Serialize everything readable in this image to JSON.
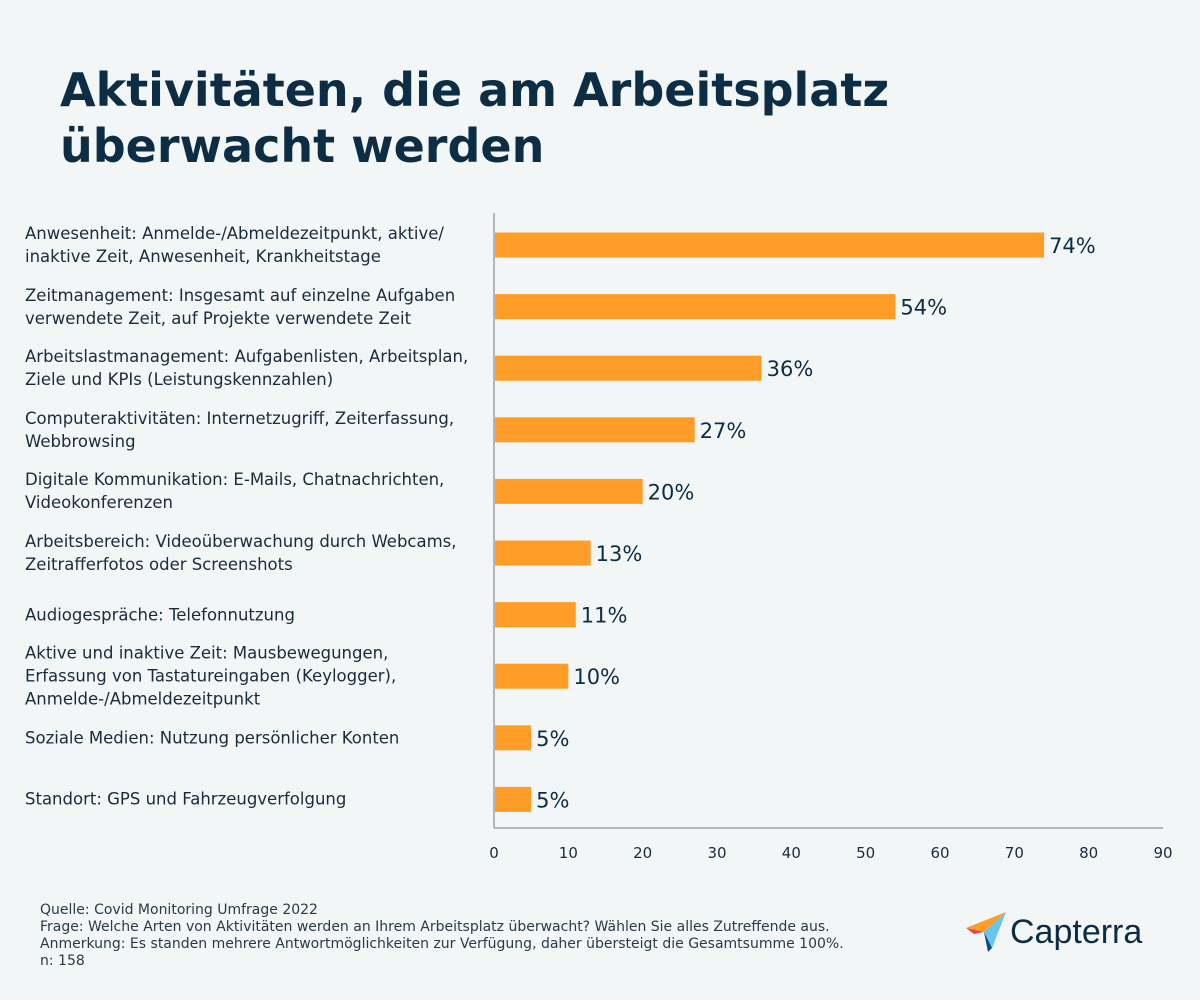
{
  "title": "Aktivitäten, die am Arbeitsplatz überwacht werden",
  "chart_data": {
    "type": "bar",
    "orientation": "horizontal",
    "categories": [
      [
        "Anwesenheit: Anmelde-/Abmeldezeitpunkt, aktive/",
        "inaktive Zeit, Anwesenheit, Krankheitstage"
      ],
      [
        "Zeitmanagement: Insgesamt auf einzelne Aufgaben",
        "verwendete Zeit, auf Projekte verwendete Zeit"
      ],
      [
        "Arbeitslastmanagement: Aufgabenlisten, Arbeitsplan,",
        "Ziele und KPIs (Leistungskennzahlen)"
      ],
      [
        "Computeraktivitäten: Internetzugriff, Zeiterfassung,",
        "Webbrowsing"
      ],
      [
        "Digitale Kommunikation: E-Mails, Chatnachrichten,",
        "Videokonferenzen"
      ],
      [
        "Arbeitsbereich: Videoüberwachung durch Webcams,",
        "Zeitrafferfotos oder Screenshots"
      ],
      [
        "Audiogespräche: Telefonnutzung"
      ],
      [
        "Aktive und inaktive Zeit: Mausbewegungen,",
        "Erfassung von Tastatureingaben (Keylogger),",
        "Anmelde-/Abmeldezeitpunkt"
      ],
      [
        "Soziale Medien: Nutzung persönlicher Konten"
      ],
      [
        "Standort: GPS und Fahrzeugverfolgung"
      ]
    ],
    "values": [
      74,
      54,
      36,
      27,
      20,
      13,
      11,
      10,
      5,
      5
    ],
    "value_labels": [
      "74%",
      "54%",
      "36%",
      "27%",
      "20%",
      "13%",
      "11%",
      "10%",
      "5%",
      "5%"
    ],
    "xlim": [
      0,
      90
    ],
    "xticks": [
      0,
      10,
      20,
      30,
      40,
      50,
      60,
      70,
      80,
      90
    ],
    "xlabel": "",
    "ylabel": "",
    "grid": false,
    "bar_color": "#ff9d28"
  },
  "footer": {
    "source": "Quelle: Covid Monitoring Umfrage 2022",
    "question": "Frage: Welche Arten von Aktivitäten werden an Ihrem Arbeitsplatz überwacht? Wählen Sie alles Zutreffende aus.",
    "note": "Anmerkung: Es standen mehrere Antwortmöglichkeiten zur Verfügung, daher übersteigt die Gesamtsumme 100%.",
    "n": "n: 158"
  },
  "logo": {
    "text": "Capterra",
    "icon": "capterra-arrow-icon",
    "colors": [
      "#ff9d28",
      "#68c5ed",
      "#044d80",
      "#e54747"
    ]
  }
}
